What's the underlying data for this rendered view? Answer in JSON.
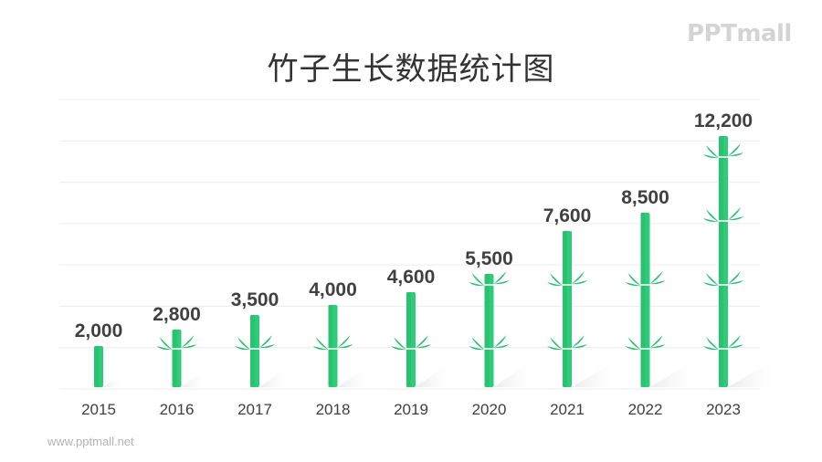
{
  "title": "竹子生长数据统计图",
  "logo": "PPTmall",
  "footer": "www.pptmall.net",
  "colors": {
    "bamboo_light": "#2ecc7a",
    "bamboo_dark": "#1fae5c",
    "node": "#d8f5e4",
    "leaf": "#27c070",
    "gridline": "#ececec",
    "label": "#404040"
  },
  "chart_data": {
    "type": "bar",
    "title": "竹子生长数据统计图",
    "xlabel": "",
    "ylabel": "",
    "categories": [
      "2015",
      "2016",
      "2017",
      "2018",
      "2019",
      "2020",
      "2021",
      "2022",
      "2023"
    ],
    "values": [
      2000,
      2800,
      3500,
      4000,
      4600,
      5500,
      7600,
      8500,
      12200
    ],
    "value_labels": [
      "2,000",
      "2,800",
      "3,500",
      "4,000",
      "4,600",
      "5,500",
      "7,600",
      "8,500",
      "12,200"
    ],
    "ylim": [
      0,
      14000
    ],
    "grid": true,
    "legend": null,
    "bar_style": "bamboo"
  }
}
